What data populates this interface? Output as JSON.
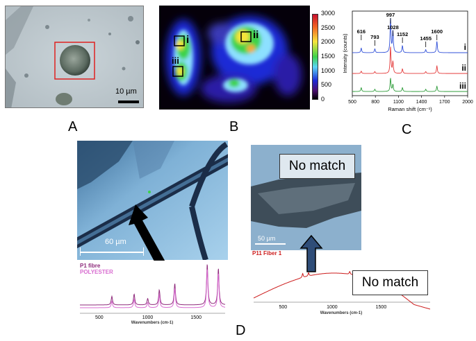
{
  "panel_letters": {
    "a": "A",
    "b": "B",
    "c": "C",
    "d": "D"
  },
  "panel_a": {
    "scale_bar": "10 µm"
  },
  "panel_b": {
    "colorbar_ticks": [
      "3000",
      "2500",
      "2000",
      "1500",
      "1000",
      "500",
      "0"
    ],
    "region_labels": [
      "i",
      "ii",
      "iii"
    ]
  },
  "chart_data": [
    {
      "type": "line",
      "panel": "C",
      "xlabel": "Raman shift (cm⁻¹)",
      "ylabel": "Intensity (counts)",
      "xlim": [
        500,
        2000
      ],
      "x_ticks": [
        "500",
        "800",
        "1100",
        "1400",
        "1700",
        "2000"
      ],
      "peak_labels": [
        {
          "x": 616,
          "label": "616"
        },
        {
          "x": 793,
          "label": "793"
        },
        {
          "x": 997,
          "label": "997"
        },
        {
          "x": 1028,
          "label": "1028"
        },
        {
          "x": 1152,
          "label": "1152"
        },
        {
          "x": 1455,
          "label": "1455"
        },
        {
          "x": 1600,
          "label": "1600"
        }
      ],
      "series": [
        {
          "name": "i",
          "color": "#2f4fd8",
          "offset": 2.0,
          "peaks": [
            [
              616,
              0.12
            ],
            [
              793,
              0.1
            ],
            [
              997,
              0.9
            ],
            [
              1028,
              0.55
            ],
            [
              1152,
              0.18
            ],
            [
              1455,
              0.08
            ],
            [
              1600,
              0.3
            ]
          ]
        },
        {
          "name": "ii",
          "color": "#e43a3a",
          "offset": 1.0,
          "peaks": [
            [
              616,
              0.06
            ],
            [
              793,
              0.05
            ],
            [
              997,
              0.7
            ],
            [
              1028,
              0.3
            ],
            [
              1152,
              0.12
            ],
            [
              1455,
              0.05
            ],
            [
              1600,
              0.2
            ]
          ]
        },
        {
          "name": "iii",
          "color": "#2e9c3a",
          "offset": 0.0,
          "peaks": [
            [
              616,
              0.1
            ],
            [
              793,
              0.06
            ],
            [
              997,
              0.35
            ],
            [
              1028,
              0.18
            ],
            [
              1152,
              0.1
            ],
            [
              1455,
              0.06
            ],
            [
              1600,
              0.14
            ]
          ]
        }
      ]
    },
    {
      "type": "line",
      "panel": "D-left",
      "xlabel": "Wavenumbers (cm-1)",
      "x_ticks": [
        "500",
        "1000",
        "1500"
      ],
      "xlim": [
        300,
        1800
      ],
      "legend": [
        "P1 fibre",
        "POLYESTER"
      ],
      "series": [
        {
          "name": "P1 fibre",
          "color": "#8e2a7b",
          "peaks": [
            [
              630,
              0.2
            ],
            [
              860,
              0.25
            ],
            [
              1000,
              0.15
            ],
            [
              1120,
              0.35
            ],
            [
              1280,
              0.5
            ],
            [
              1615,
              0.95
            ],
            [
              1730,
              0.85
            ]
          ]
        },
        {
          "name": "POLYESTER",
          "color": "#d86bd0",
          "peaks": [
            [
              630,
              0.15
            ],
            [
              860,
              0.2
            ],
            [
              1000,
              0.12
            ],
            [
              1120,
              0.3
            ],
            [
              1280,
              0.45
            ],
            [
              1615,
              0.9
            ],
            [
              1730,
              0.8
            ]
          ]
        }
      ]
    },
    {
      "type": "line",
      "panel": "D-right",
      "xlabel": "Wavenumbers (cm-1)",
      "x_ticks": [
        "500",
        "1000",
        "1500"
      ],
      "xlim": [
        200,
        2000
      ],
      "legend": [
        "P11 Fiber 1"
      ],
      "series": [
        {
          "name": "P11 Fiber 1",
          "color": "#cc1b1b",
          "peaks": [
            [
              700,
              0.15
            ],
            [
              760,
              0.12
            ],
            [
              1180,
              0.1
            ],
            [
              1290,
              0.18
            ],
            [
              1370,
              0.22
            ],
            [
              1450,
              0.25
            ],
            [
              1530,
              0.35
            ]
          ]
        }
      ]
    }
  ],
  "panel_d": {
    "left_scale": "60 µm",
    "right_scale": "50 µm",
    "no_match_top": "No match",
    "no_match_bottom": "No match"
  }
}
